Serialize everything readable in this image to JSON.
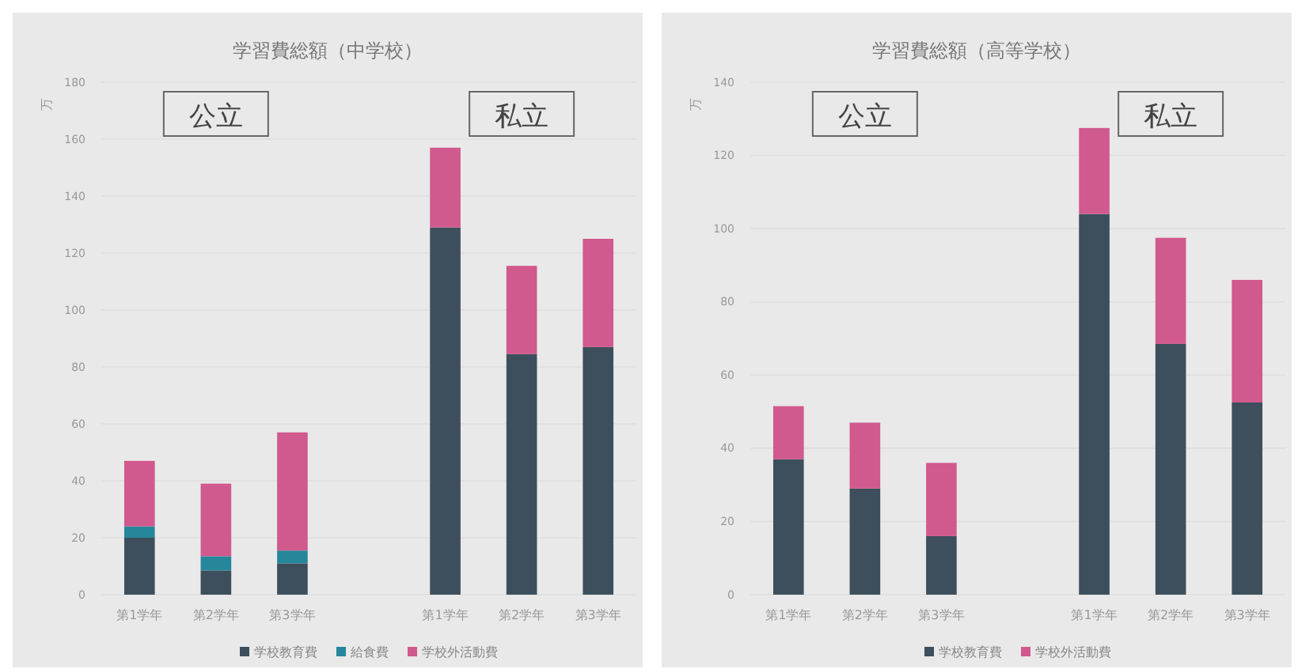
{
  "chart_data": [
    {
      "type": "bar",
      "title": "学習費総額（中学校）",
      "ylabel": "万",
      "stacked": true,
      "grid": "y",
      "legend": "bottom",
      "categories": [
        "第1学年",
        "第2学年",
        "第3学年",
        null,
        "第1学年",
        "第2学年",
        "第3学年"
      ],
      "series": [
        {
          "name": "学校教育費",
          "color": "#3d4f5c",
          "values": [
            20,
            8.5,
            11,
            null,
            129,
            84.5,
            87
          ]
        },
        {
          "name": "給食費",
          "color": "#27879a",
          "values": [
            4,
            5,
            4.5,
            null,
            null,
            null,
            null
          ]
        },
        {
          "name": "学校外活動費",
          "color": "#d0598d",
          "values": [
            23,
            25.5,
            41.5,
            null,
            28,
            31,
            38
          ]
        }
      ],
      "ylim": [
        0,
        180
      ],
      "yticks": [
        0,
        20,
        40,
        60,
        80,
        100,
        120,
        140,
        160,
        180
      ],
      "annotations": [
        "公立",
        "私立"
      ]
    },
    {
      "type": "bar",
      "title": "学習費総額（高等学校）",
      "ylabel": "万",
      "stacked": true,
      "grid": "y",
      "legend": "bottom",
      "categories": [
        "第1学年",
        "第2学年",
        "第3学年",
        null,
        "第1学年",
        "第2学年",
        "第3学年"
      ],
      "series": [
        {
          "name": "学校教育費",
          "color": "#3d4f5c",
          "values": [
            37,
            29,
            16,
            null,
            104,
            68.5,
            52.5
          ]
        },
        {
          "name": "学校外活動費",
          "color": "#d0598d",
          "values": [
            14.5,
            18,
            20,
            null,
            23.5,
            29,
            33.5
          ]
        }
      ],
      "ylim": [
        0,
        140
      ],
      "yticks": [
        0,
        20,
        40,
        60,
        80,
        100,
        120,
        140
      ],
      "annotations": [
        "公立",
        "私立"
      ]
    }
  ]
}
